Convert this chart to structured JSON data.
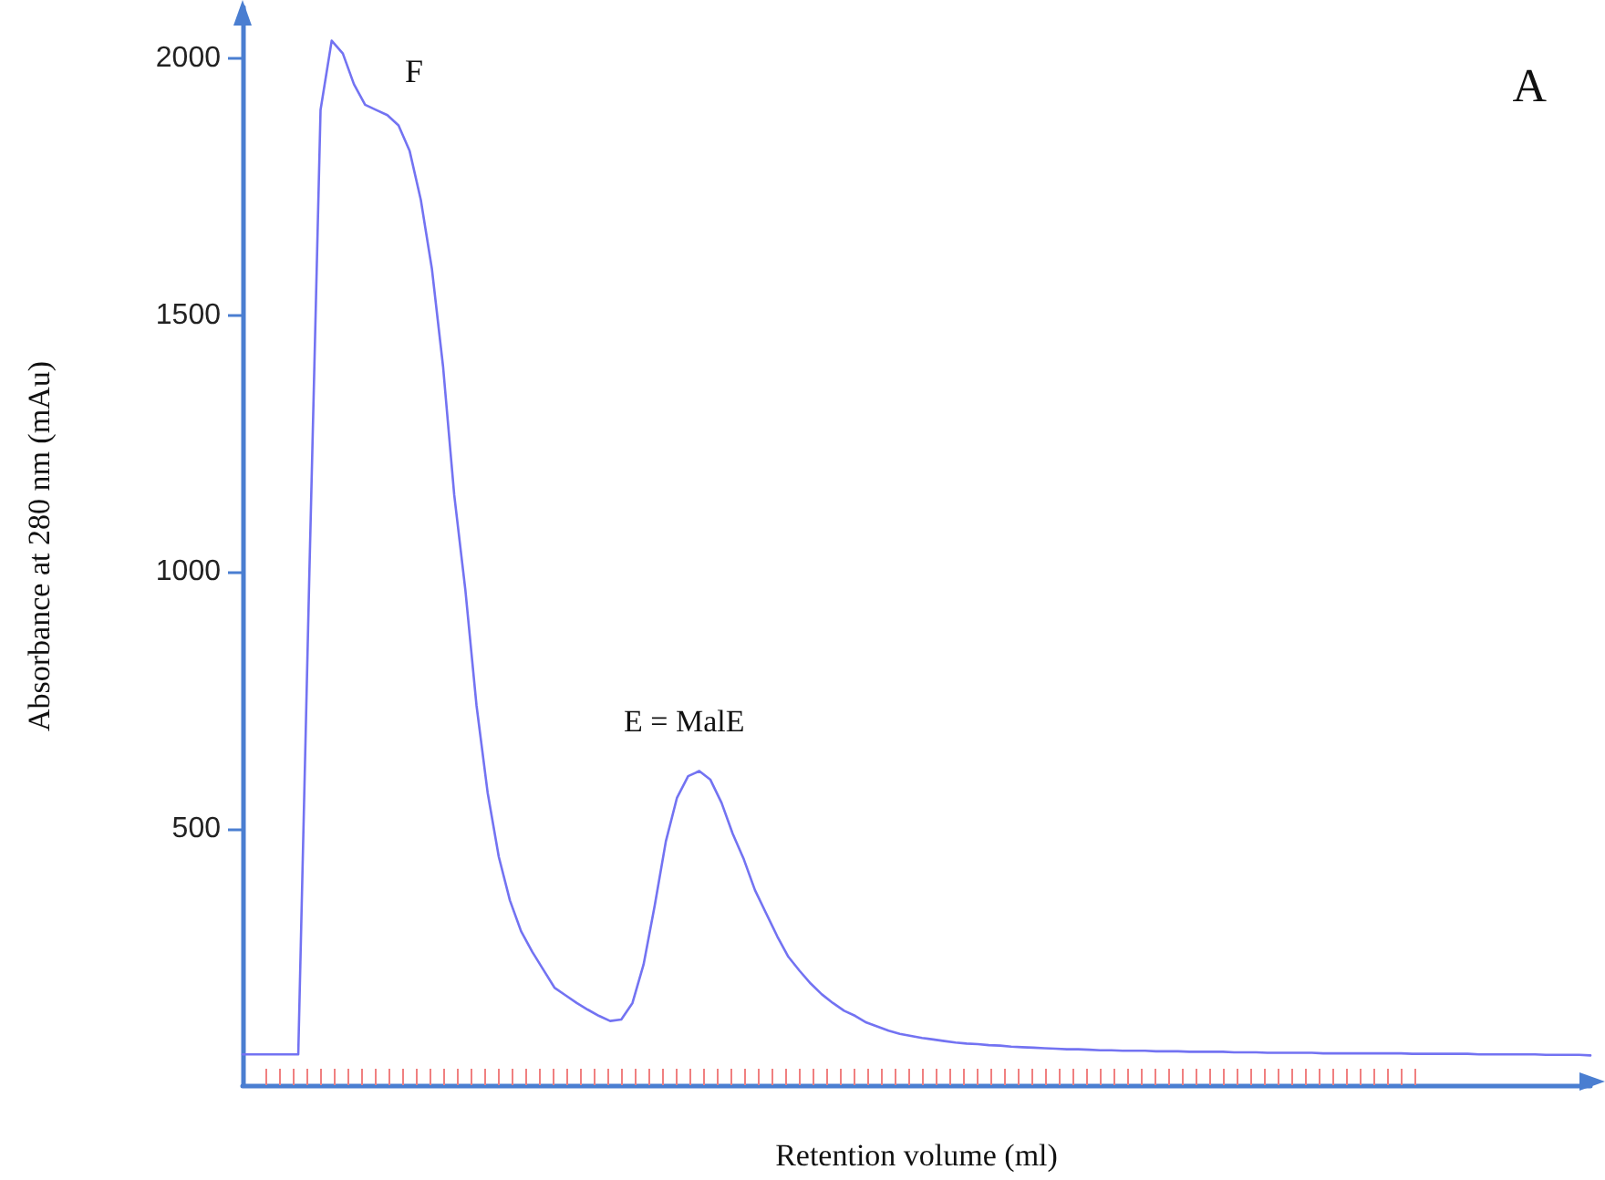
{
  "chart_data": {
    "type": "line",
    "xlabel": "Retention volume (ml)",
    "ylabel": "Absorbance at 280 nm (mAu)",
    "annotations": [
      "F",
      "E = MalE",
      "A"
    ],
    "categories": [
      null,
      null,
      null,
      null,
      null,
      null,
      null,
      null,
      null,
      null,
      null,
      null,
      null,
      null,
      null,
      null,
      null,
      null,
      null,
      null,
      null,
      null,
      null,
      null,
      null,
      null,
      null,
      null,
      null,
      null,
      null,
      null,
      null,
      null,
      null,
      null,
      null,
      null,
      null,
      null,
      null,
      null,
      null,
      null,
      null,
      null,
      null,
      null,
      null,
      null,
      null,
      null,
      null,
      null,
      null,
      null,
      null,
      null,
      null,
      null,
      null,
      null,
      null,
      null,
      null,
      null,
      null,
      null,
      null,
      null,
      null,
      null,
      null,
      null,
      null,
      null,
      null,
      null,
      null,
      null,
      null,
      null,
      null,
      null,
      null,
      null,
      null,
      null,
      null,
      null,
      null,
      null,
      null,
      null,
      null,
      null,
      null,
      null,
      null,
      null,
      null,
      null,
      null,
      null,
      null,
      null,
      null,
      null,
      null,
      null,
      null,
      null,
      null,
      null,
      null,
      null,
      null,
      null,
      null,
      null,
      null,
      null
    ],
    "series": [
      {
        "color": "#7373f2",
        "values": [
          60,
          60,
          60,
          60,
          60,
          60,
          1000,
          1900,
          2035,
          2010,
          1950,
          1910,
          1900,
          1890,
          1870,
          1820,
          1725,
          1590,
          1400,
          1150,
          965,
          740,
          570,
          445,
          360,
          300,
          260,
          225,
          190,
          175,
          160,
          147,
          135,
          125,
          128,
          160,
          235,
          350,
          475,
          560,
          602,
          612,
          595,
          550,
          490,
          440,
          380,
          335,
          290,
          250,
          223,
          198,
          177,
          160,
          145,
          135,
          122,
          114,
          106,
          100,
          96,
          92,
          89,
          86,
          83,
          81,
          80,
          78,
          77,
          75,
          74,
          73,
          72,
          71,
          70,
          70,
          69,
          68,
          68,
          67,
          67,
          67,
          66,
          66,
          66,
          65,
          65,
          65,
          65,
          64,
          64,
          64,
          63,
          63,
          63,
          63,
          63,
          62,
          62,
          62,
          62,
          62,
          62,
          62,
          62,
          61,
          61,
          61,
          61,
          61,
          61,
          60,
          60,
          60,
          60,
          60,
          60,
          59,
          59,
          59,
          59,
          58
        ]
      }
    ],
    "ylim": [
      0,
      2100
    ],
    "yticks": [
      500,
      1000,
      1500,
      2000
    ],
    "tick_labels": "y",
    "grid": false,
    "line_style": "solid"
  }
}
